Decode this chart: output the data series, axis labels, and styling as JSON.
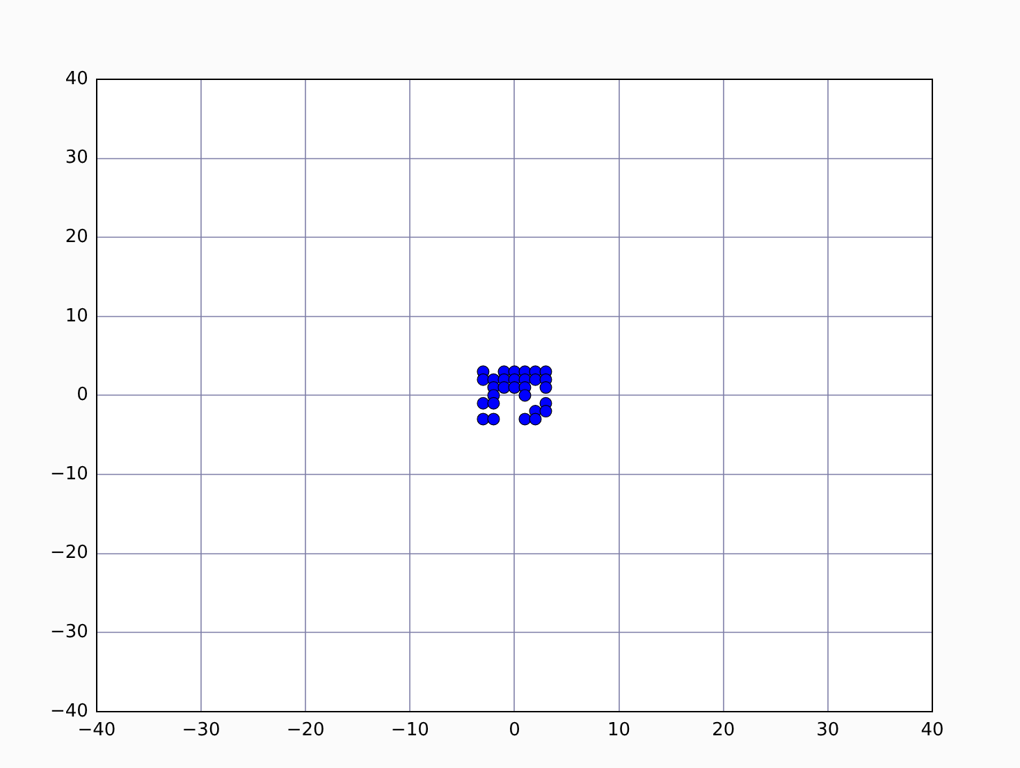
{
  "chart_data": {
    "type": "scatter",
    "xlim": [
      -40,
      40
    ],
    "ylim": [
      -40,
      40
    ],
    "xticks": [
      -40,
      -30,
      -20,
      -10,
      0,
      10,
      20,
      30,
      40
    ],
    "yticks": [
      -40,
      -30,
      -20,
      -10,
      0,
      10,
      20,
      30,
      40
    ],
    "grid": true,
    "marker": "circle",
    "series": [
      {
        "color": "#0000ff",
        "x": [
          -3,
          -1,
          0,
          1,
          2,
          3,
          -3,
          -2,
          -1,
          0,
          1,
          2,
          3,
          -2,
          -1,
          0,
          1,
          3,
          -2,
          1,
          -3,
          -2,
          3,
          2,
          3,
          -3,
          -2,
          1,
          2
        ],
        "values": [
          3,
          3,
          3,
          3,
          3,
          3,
          2,
          2,
          2,
          2,
          2,
          2,
          2,
          1,
          1,
          1,
          1,
          1,
          0,
          0,
          -1,
          -1,
          -1,
          -2,
          -2,
          -3,
          -3,
          -3,
          -3
        ]
      }
    ]
  }
}
